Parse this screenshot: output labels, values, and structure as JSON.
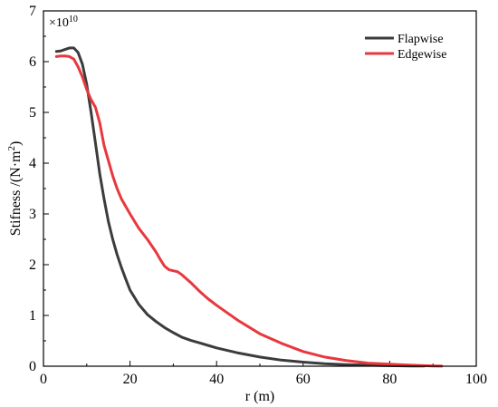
{
  "chart_data": {
    "type": "line",
    "xlabel": "r (m)",
    "ylabel": "Stifness /(N·m",
    "ylabel_sup": "2",
    "ylabel_close": ")",
    "scale_note": "×10",
    "scale_exp": "10",
    "xlim": [
      0,
      100
    ],
    "ylim": [
      0,
      7
    ],
    "xticks": [
      0,
      20,
      40,
      60,
      80,
      100
    ],
    "yticks": [
      0,
      1,
      2,
      3,
      4,
      5,
      6,
      7
    ],
    "xtick_labels": [
      "0",
      "20",
      "40",
      "60",
      "80",
      "100"
    ],
    "ytick_labels": [
      "0",
      "1",
      "2",
      "3",
      "4",
      "5",
      "6",
      "7"
    ],
    "grid": false,
    "legend_position": "top-right",
    "series": [
      {
        "name": "Flapwise",
        "color": "#3c3c3c",
        "points": [
          [
            3,
            6.2
          ],
          [
            4,
            6.21
          ],
          [
            5,
            6.24
          ],
          [
            6,
            6.27
          ],
          [
            7,
            6.27
          ],
          [
            8,
            6.18
          ],
          [
            9,
            5.95
          ],
          [
            10,
            5.55
          ],
          [
            11,
            5.0
          ],
          [
            12,
            4.4
          ],
          [
            13,
            3.8
          ],
          [
            14,
            3.3
          ],
          [
            15,
            2.85
          ],
          [
            16,
            2.5
          ],
          [
            17,
            2.2
          ],
          [
            18,
            1.95
          ],
          [
            19,
            1.72
          ],
          [
            20,
            1.5
          ],
          [
            22,
            1.22
          ],
          [
            24,
            1.02
          ],
          [
            26,
            0.88
          ],
          [
            28,
            0.76
          ],
          [
            30,
            0.66
          ],
          [
            32,
            0.57
          ],
          [
            34,
            0.51
          ],
          [
            36,
            0.46
          ],
          [
            38,
            0.41
          ],
          [
            40,
            0.36
          ],
          [
            45,
            0.26
          ],
          [
            50,
            0.18
          ],
          [
            55,
            0.12
          ],
          [
            60,
            0.08
          ],
          [
            65,
            0.05
          ],
          [
            70,
            0.03
          ],
          [
            75,
            0.02
          ],
          [
            80,
            0.01
          ],
          [
            85,
            0.006
          ],
          [
            88,
            0.003
          ]
        ]
      },
      {
        "name": "Edgewise",
        "color": "#e8383d",
        "points": [
          [
            3,
            6.1
          ],
          [
            4,
            6.11
          ],
          [
            5,
            6.11
          ],
          [
            6,
            6.1
          ],
          [
            7,
            6.05
          ],
          [
            8,
            5.9
          ],
          [
            9,
            5.7
          ],
          [
            10,
            5.45
          ],
          [
            11,
            5.25
          ],
          [
            12,
            5.1
          ],
          [
            13,
            4.8
          ],
          [
            14,
            4.35
          ],
          [
            15,
            4.05
          ],
          [
            16,
            3.75
          ],
          [
            17,
            3.5
          ],
          [
            18,
            3.3
          ],
          [
            19,
            3.15
          ],
          [
            20,
            3.0
          ],
          [
            22,
            2.72
          ],
          [
            24,
            2.5
          ],
          [
            26,
            2.25
          ],
          [
            27,
            2.1
          ],
          [
            28,
            1.97
          ],
          [
            29,
            1.9
          ],
          [
            30,
            1.88
          ],
          [
            31,
            1.86
          ],
          [
            32,
            1.8
          ],
          [
            34,
            1.65
          ],
          [
            36,
            1.48
          ],
          [
            38,
            1.33
          ],
          [
            40,
            1.2
          ],
          [
            45,
            0.9
          ],
          [
            50,
            0.64
          ],
          [
            55,
            0.45
          ],
          [
            60,
            0.29
          ],
          [
            65,
            0.18
          ],
          [
            70,
            0.11
          ],
          [
            75,
            0.06
          ],
          [
            80,
            0.04
          ],
          [
            85,
            0.02
          ],
          [
            90,
            0.005
          ],
          [
            92,
            0.002
          ]
        ]
      }
    ]
  }
}
